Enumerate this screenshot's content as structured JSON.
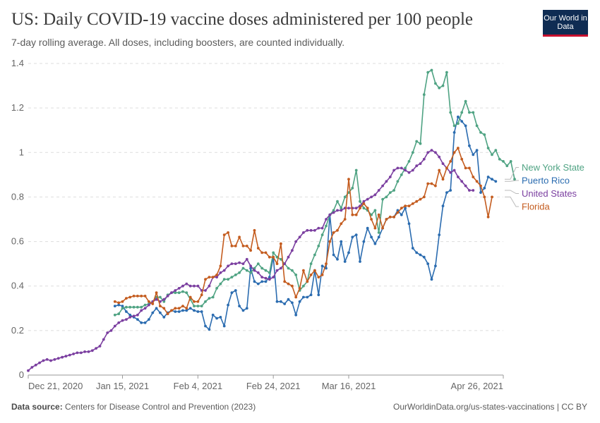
{
  "header": {
    "title": "US: Daily COVID-19 vaccine doses administered per 100 people",
    "subtitle": "7-day rolling average. All doses, including boosters, are counted individually.",
    "logo": "Our World in Data"
  },
  "footer": {
    "source_label": "Data source:",
    "source_text": "Centers for Disease Control and Prevention (2023)",
    "credit": "OurWorldinData.org/us-states-vaccinations | CC BY"
  },
  "chart_data": {
    "type": "line",
    "title": "US: Daily COVID-19 vaccine doses administered per 100 people",
    "xlabel": "",
    "ylabel": "",
    "ylim": [
      0,
      1.4
    ],
    "yticks": [
      0,
      0.2,
      0.4,
      0.6,
      0.8,
      1,
      1.2,
      1.4
    ],
    "ytick_labels": [
      "0",
      "0.2",
      "0.4",
      "0.6",
      "0.8",
      "1",
      "1.2",
      "1.4"
    ],
    "xlim": [
      0,
      126
    ],
    "xticks": [
      0,
      25,
      45,
      65,
      85,
      126
    ],
    "xtick_labels": [
      "Dec 21, 2020",
      "Jan 15, 2021",
      "Feb 4, 2021",
      "Feb 24, 2021",
      "Mar 16, 2021",
      "Apr 26, 2021"
    ],
    "grid": true,
    "legend_position": "right",
    "series": [
      {
        "name": "Puerto Rico",
        "color": "#2b6cb0",
        "x_start": 23,
        "values": [
          0.31,
          0.315,
          0.31,
          0.285,
          0.27,
          0.26,
          0.25,
          0.235,
          0.235,
          0.25,
          0.28,
          0.3,
          0.28,
          0.26,
          0.28,
          0.29,
          0.285,
          0.285,
          0.29,
          0.29,
          0.3,
          0.29,
          0.285,
          0.285,
          0.22,
          0.205,
          0.27,
          0.255,
          0.26,
          0.22,
          0.315,
          0.37,
          0.38,
          0.31,
          0.29,
          0.3,
          0.48,
          0.42,
          0.41,
          0.42,
          0.42,
          0.44,
          0.53,
          0.33,
          0.33,
          0.32,
          0.34,
          0.325,
          0.27,
          0.33,
          0.35,
          0.35,
          0.36,
          0.47,
          0.36,
          0.49,
          0.48,
          0.72,
          0.54,
          0.52,
          0.6,
          0.51,
          0.55,
          0.62,
          0.63,
          0.51,
          0.6,
          0.66,
          0.62,
          0.59,
          0.62,
          0.66,
          0.7,
          0.71,
          0.71,
          0.74,
          0.72,
          0.75,
          0.68,
          0.57,
          0.55,
          0.54,
          0.53,
          0.5,
          0.43,
          0.49,
          0.63,
          0.76,
          0.82,
          0.83,
          1.09,
          1.16,
          1.14,
          1.12,
          1.03,
          0.99,
          1.01,
          0.82,
          0.84,
          0.89,
          0.88,
          0.87
        ]
      },
      {
        "name": "New York State",
        "color": "#4fa383",
        "x_start": 23,
        "values": [
          0.27,
          0.275,
          0.3,
          0.305,
          0.305,
          0.305,
          0.305,
          0.305,
          0.315,
          0.32,
          0.33,
          0.35,
          0.35,
          0.33,
          0.36,
          0.37,
          0.37,
          0.37,
          0.375,
          0.37,
          0.34,
          0.31,
          0.31,
          0.31,
          0.33,
          0.345,
          0.35,
          0.39,
          0.41,
          0.43,
          0.43,
          0.44,
          0.45,
          0.46,
          0.48,
          0.47,
          0.46,
          0.48,
          0.5,
          0.48,
          0.47,
          0.46,
          0.55,
          0.53,
          0.52,
          0.5,
          0.48,
          0.47,
          0.45,
          0.38,
          0.4,
          0.42,
          0.5,
          0.54,
          0.58,
          0.63,
          0.67,
          0.72,
          0.74,
          0.78,
          0.75,
          0.8,
          0.82,
          0.84,
          0.92,
          0.78,
          0.75,
          0.74,
          0.72,
          0.74,
          0.64,
          0.79,
          0.8,
          0.82,
          0.83,
          0.87,
          0.9,
          0.93,
          0.96,
          1.0,
          1.05,
          1.04,
          1.26,
          1.36,
          1.37,
          1.31,
          1.29,
          1.3,
          1.36,
          1.18,
          1.12,
          1.13,
          1.18,
          1.23,
          1.18,
          1.18,
          1.12,
          1.09,
          1.08,
          1.02,
          0.99,
          1.01,
          0.97,
          0.96,
          0.94,
          0.96,
          0.88
        ]
      },
      {
        "name": "United States",
        "color": "#7b3fa0",
        "x_start": 0,
        "values": [
          0.02,
          0.035,
          0.045,
          0.055,
          0.065,
          0.07,
          0.065,
          0.07,
          0.075,
          0.08,
          0.085,
          0.09,
          0.095,
          0.1,
          0.1,
          0.105,
          0.105,
          0.11,
          0.12,
          0.13,
          0.16,
          0.19,
          0.2,
          0.22,
          0.235,
          0.245,
          0.25,
          0.26,
          0.265,
          0.27,
          0.29,
          0.3,
          0.315,
          0.33,
          0.34,
          0.33,
          0.34,
          0.355,
          0.37,
          0.38,
          0.39,
          0.4,
          0.41,
          0.4,
          0.4,
          0.4,
          0.38,
          0.38,
          0.4,
          0.44,
          0.44,
          0.46,
          0.47,
          0.49,
          0.5,
          0.5,
          0.505,
          0.5,
          0.52,
          0.49,
          0.47,
          0.46,
          0.44,
          0.435,
          0.43,
          0.44,
          0.47,
          0.48,
          0.5,
          0.53,
          0.56,
          0.6,
          0.62,
          0.64,
          0.65,
          0.65,
          0.65,
          0.66,
          0.66,
          0.7,
          0.72,
          0.73,
          0.74,
          0.74,
          0.75,
          0.75,
          0.75,
          0.75,
          0.76,
          0.78,
          0.79,
          0.8,
          0.81,
          0.83,
          0.85,
          0.87,
          0.89,
          0.92,
          0.93,
          0.93,
          0.92,
          0.91,
          0.92,
          0.94,
          0.95,
          0.97,
          1.0,
          1.01,
          1.0,
          0.98,
          0.95,
          0.93,
          0.91,
          0.92,
          0.89,
          0.87,
          0.85,
          0.83,
          0.83
        ]
      },
      {
        "name": "Florida",
        "color": "#c45c1f",
        "x_start": 23,
        "values": [
          0.33,
          0.325,
          0.33,
          0.345,
          0.35,
          0.355,
          0.355,
          0.355,
          0.355,
          0.33,
          0.32,
          0.37,
          0.31,
          0.3,
          0.275,
          0.29,
          0.3,
          0.3,
          0.31,
          0.3,
          0.35,
          0.33,
          0.33,
          0.36,
          0.43,
          0.44,
          0.44,
          0.45,
          0.49,
          0.63,
          0.64,
          0.58,
          0.58,
          0.62,
          0.58,
          0.58,
          0.56,
          0.65,
          0.57,
          0.55,
          0.55,
          0.53,
          0.53,
          0.5,
          0.59,
          0.42,
          0.41,
          0.4,
          0.35,
          0.39,
          0.47,
          0.42,
          0.45,
          0.47,
          0.44,
          0.45,
          0.5,
          0.6,
          0.64,
          0.65,
          0.68,
          0.7,
          0.88,
          0.72,
          0.72,
          0.75,
          0.77,
          0.75,
          0.7,
          0.66,
          0.72,
          0.66,
          0.7,
          0.71,
          0.71,
          0.73,
          0.75,
          0.76,
          0.76,
          0.77,
          0.78,
          0.79,
          0.8,
          0.86,
          0.86,
          0.85,
          0.92,
          0.88,
          0.93,
          0.96,
          1.0,
          1.02,
          0.97,
          0.93,
          0.93,
          0.89,
          0.87,
          0.85,
          0.8,
          0.71,
          0.8
        ]
      }
    ]
  }
}
